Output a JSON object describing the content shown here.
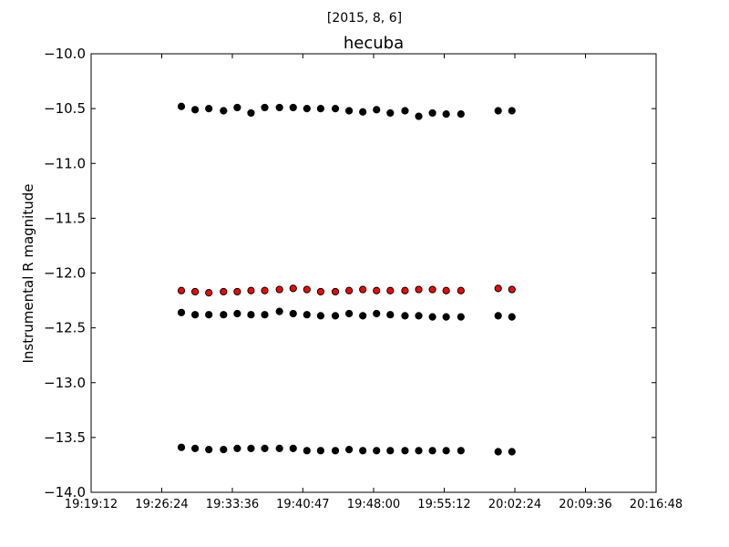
{
  "chart_data": {
    "type": "scatter",
    "suptitle": "[2015, 8, 6]",
    "title": "hecuba",
    "xlabel": "",
    "ylabel": "Instrumental R magnitude",
    "xlim": [
      "19:19:12",
      "20:16:48"
    ],
    "ylim": [
      -10.0,
      -14.0
    ],
    "y_inverted": true,
    "grid": false,
    "x_ticks": [
      "19:19:12",
      "19:26:24",
      "19:33:36",
      "19:40:47",
      "19:48:00",
      "19:55:12",
      "20:02:24",
      "20:09:36",
      "20:16:48"
    ],
    "y_ticks": [
      "-10.0",
      "-10.5",
      "-11.0",
      "-11.5",
      "-12.0",
      "-12.5",
      "-13.0",
      "-13.5",
      "-14.0"
    ],
    "x": [
      "19:28:24",
      "19:29:48",
      "19:31:12",
      "19:32:42",
      "19:34:06",
      "19:35:30",
      "19:36:54",
      "19:38:24",
      "19:39:48",
      "19:41:12",
      "19:42:36",
      "19:44:06",
      "19:45:30",
      "19:46:54",
      "19:48:18",
      "19:49:42",
      "19:51:12",
      "19:52:36",
      "19:54:00",
      "19:55:24",
      "19:56:54",
      "20:00:42",
      "20:02:06"
    ],
    "series": [
      {
        "color": "#000000",
        "values": [
          -10.48,
          -10.51,
          -10.5,
          -10.52,
          -10.49,
          -10.54,
          -10.49,
          -10.49,
          -10.49,
          -10.5,
          -10.5,
          -10.5,
          -10.52,
          -10.53,
          -10.51,
          -10.54,
          -10.52,
          -10.57,
          -10.54,
          -10.55,
          -10.55,
          -10.52,
          -10.52
        ]
      },
      {
        "color": "#ff0000",
        "values": [
          -12.16,
          -12.17,
          -12.18,
          -12.17,
          -12.17,
          -12.16,
          -12.16,
          -12.15,
          -12.14,
          -12.15,
          -12.17,
          -12.17,
          -12.16,
          -12.15,
          -12.16,
          -12.16,
          -12.16,
          -12.15,
          -12.15,
          -12.16,
          -12.16,
          -12.14,
          -12.15
        ]
      },
      {
        "color": "#000000",
        "values": [
          -12.36,
          -12.38,
          -12.38,
          -12.38,
          -12.37,
          -12.38,
          -12.38,
          -12.35,
          -12.37,
          -12.38,
          -12.39,
          -12.39,
          -12.37,
          -12.39,
          -12.37,
          -12.38,
          -12.39,
          -12.39,
          -12.4,
          -12.4,
          -12.4,
          -12.39,
          -12.4
        ]
      },
      {
        "color": "#000000",
        "values": [
          -13.59,
          -13.6,
          -13.61,
          -13.61,
          -13.6,
          -13.6,
          -13.6,
          -13.6,
          -13.6,
          -13.62,
          -13.62,
          -13.62,
          -13.61,
          -13.62,
          -13.62,
          -13.62,
          -13.62,
          -13.62,
          -13.62,
          -13.62,
          -13.62,
          -13.63,
          -13.63
        ]
      }
    ]
  }
}
